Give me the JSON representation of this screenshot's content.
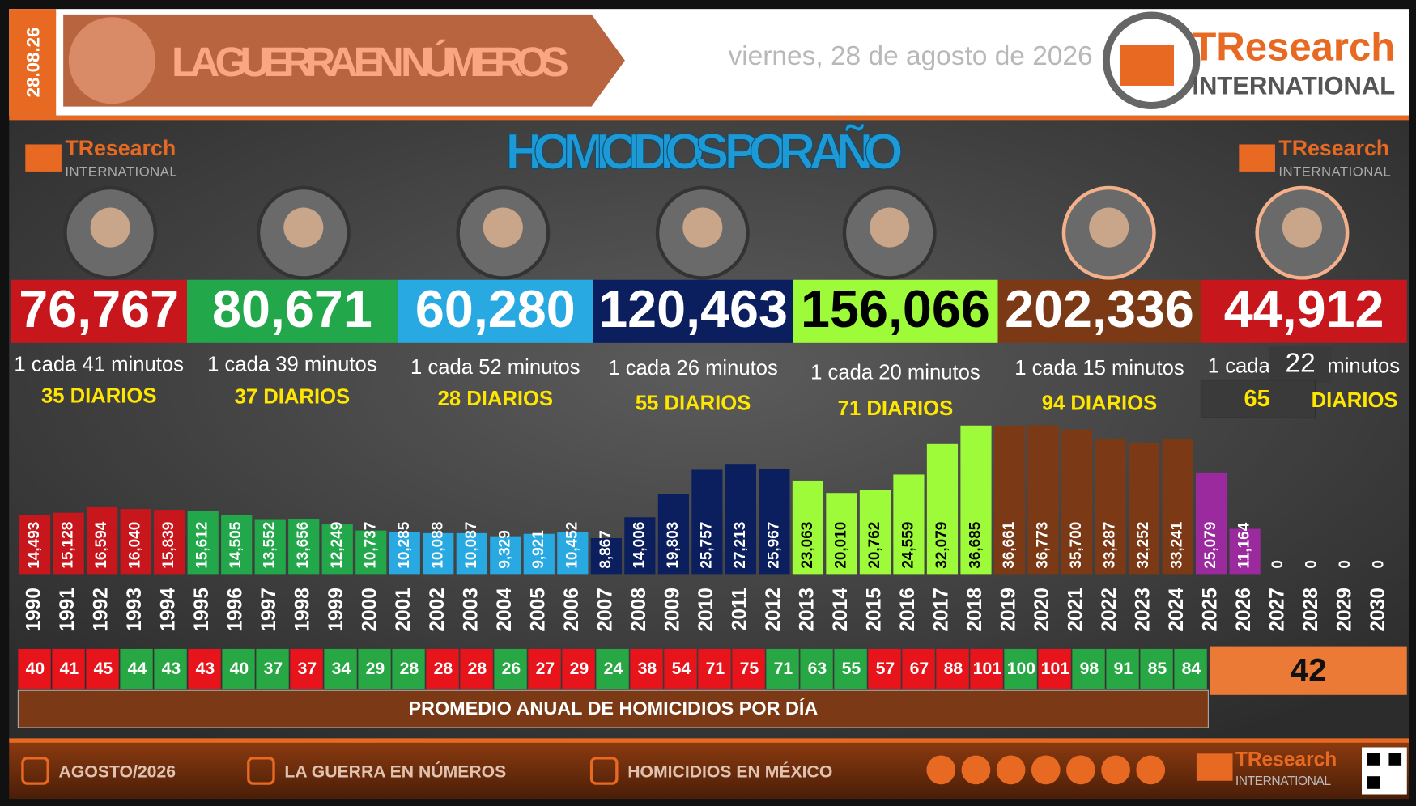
{
  "header": {
    "date_vertical": "28.08.26",
    "title": "LA GUERRA EN NÚMEROS",
    "date": "viernes, 28 de agosto de 2026",
    "logo_name": "TResearch",
    "logo_sub": "INTERNATIONAL"
  },
  "presidents": [
    {
      "total": "76,767",
      "rate": "1 cada 41 minutos",
      "daily": "35 DIARIOS",
      "color": "#c8161d"
    },
    {
      "total": "80,671",
      "rate": "1 cada 39 minutos",
      "daily": "37 DIARIOS",
      "color": "#22a84a"
    },
    {
      "total": "60,280",
      "rate": "1 cada 52 minutos",
      "daily": "28 DIARIOS",
      "color": "#29a9e1"
    },
    {
      "total": "120,463",
      "rate": "1 cada 26 minutos",
      "daily": "55 DIARIOS",
      "color": "#0b1f5f"
    },
    {
      "total": "156,066",
      "rate": "1 cada 20 minutos",
      "daily": "71 DIARIOS",
      "color": "#9dfb3a"
    },
    {
      "total": "202,336",
      "rate": "1 cada 15 minutos",
      "daily": "94 DIARIOS",
      "color": "#7b3a15"
    },
    {
      "total": "44,912",
      "rate_prefix": "1 cada",
      "rate_value": "22",
      "rate_suffix": "minutos",
      "daily_value": "65",
      "daily_suffix": "DIARIOS",
      "color": "#c8161d"
    }
  ],
  "chart_data": {
    "type": "bar",
    "title": "HOMICIDIOS POR AÑO",
    "categories": [
      "1990",
      "1991",
      "1992",
      "1993",
      "1994",
      "1995",
      "1996",
      "1997",
      "1998",
      "1999",
      "2000",
      "2001",
      "2002",
      "2003",
      "2004",
      "2005",
      "2006",
      "2007",
      "2008",
      "2009",
      "2010",
      "2011",
      "2012",
      "2013",
      "2014",
      "2015",
      "2016",
      "2017",
      "2018",
      "2019",
      "2020",
      "2021",
      "2022",
      "2023",
      "2024",
      "2025",
      "2026",
      "2027",
      "2028",
      "2029",
      "2030"
    ],
    "values": [
      14493,
      15128,
      16594,
      16040,
      15839,
      15612,
      14505,
      13552,
      13656,
      12249,
      10737,
      10285,
      10088,
      10087,
      9329,
      9921,
      10452,
      8867,
      14006,
      19803,
      25757,
      27213,
      25967,
      23063,
      20010,
      20762,
      24559,
      32079,
      36685,
      36661,
      36773,
      35700,
      33287,
      32252,
      33241,
      25079,
      11164,
      0,
      0,
      0,
      0
    ],
    "value_labels": [
      "14,493",
      "15,128",
      "16,594",
      "16,040",
      "15,839",
      "15,612",
      "14,505",
      "13,552",
      "13,656",
      "12,249",
      "10,737",
      "10,285",
      "10,088",
      "10,087",
      "9,329",
      "9,921",
      "10,452",
      "8,867",
      "14,006",
      "19,803",
      "25,757",
      "27,213",
      "25,967",
      "23,063",
      "20,010",
      "20,762",
      "24,559",
      "32,079",
      "36,685",
      "36,661",
      "36,773",
      "35,700",
      "33,287",
      "32,252",
      "33,241",
      "25,079",
      "11,164",
      "0",
      "0",
      "0",
      "0"
    ],
    "colors": [
      "#c8161d",
      "#c8161d",
      "#c8161d",
      "#c8161d",
      "#c8161d",
      "#22a84a",
      "#22a84a",
      "#22a84a",
      "#22a84a",
      "#22a84a",
      "#22a84a",
      "#29a9e1",
      "#29a9e1",
      "#29a9e1",
      "#29a9e1",
      "#29a9e1",
      "#29a9e1",
      "#0b1f5f",
      "#0b1f5f",
      "#0b1f5f",
      "#0b1f5f",
      "#0b1f5f",
      "#0b1f5f",
      "#9dfb3a",
      "#9dfb3a",
      "#9dfb3a",
      "#9dfb3a",
      "#9dfb3a",
      "#9dfb3a",
      "#7b3a15",
      "#7b3a15",
      "#7b3a15",
      "#7b3a15",
      "#7b3a15",
      "#7b3a15",
      "#9c2a9f",
      "#9c2a9f",
      "#9c2a9f",
      "#9c2a9f",
      "#9c2a9f",
      "#9c2a9f"
    ]
  },
  "daily_averages": {
    "values": [
      "40",
      "41",
      "45",
      "44",
      "43",
      "43",
      "40",
      "37",
      "37",
      "34",
      "29",
      "28",
      "28",
      "28",
      "26",
      "27",
      "29",
      "24",
      "38",
      "54",
      "71",
      "75",
      "71",
      "63",
      "55",
      "57",
      "67",
      "88",
      "101",
      "100",
      "101",
      "98",
      "91",
      "85",
      "84"
    ],
    "colors": [
      "#e8141c",
      "#e8141c",
      "#e8141c",
      "#27a844",
      "#27a844",
      "#e8141c",
      "#27a844",
      "#27a844",
      "#e8141c",
      "#27a844",
      "#27a844",
      "#27a844",
      "#e8141c",
      "#e8141c",
      "#27a844",
      "#e8141c",
      "#e8141c",
      "#27a844",
      "#e8141c",
      "#e8141c",
      "#e8141c",
      "#e8141c",
      "#27a844",
      "#27a844",
      "#27a844",
      "#e8141c",
      "#e8141c",
      "#e8141c",
      "#e8141c",
      "#27a844",
      "#e8141c",
      "#27a844",
      "#27a844",
      "#27a844",
      "#27a844"
    ],
    "current": "42",
    "label": "PROMEDIO ANUAL DE HOMICIDIOS POR DÍA"
  },
  "footer": {
    "items": [
      "AGOSTO/2026",
      "LA GUERRA EN NÚMEROS",
      "HOMICIDIOS EN MÉXICO"
    ]
  }
}
